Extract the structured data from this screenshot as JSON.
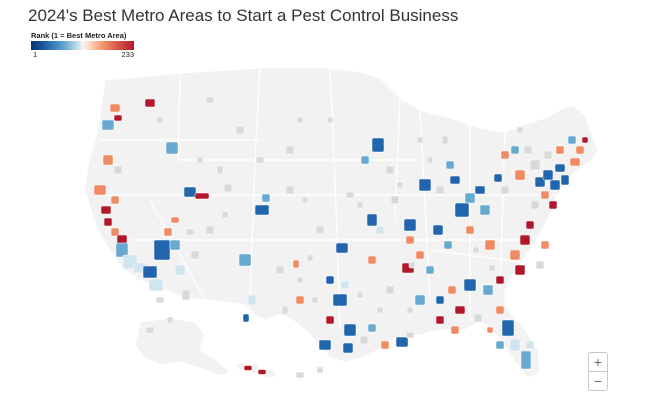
{
  "title": "2024's Best Metro Areas to Start a Pest Control Business",
  "legend": {
    "title": "Rank (1 = Best Metro Area)",
    "min_label": "1",
    "max_label": "233",
    "colors": [
      "#08306b",
      "#2166ac",
      "#67a9cf",
      "#d1e5f0",
      "#f7f7f7",
      "#fddbc7",
      "#ef8a62",
      "#b2182b"
    ]
  },
  "map": {
    "land_color": "#f2f2f2",
    "border_color": "#ffffff",
    "no_data_color": "#d9d9d9",
    "ocean_color": "#ffffff"
  },
  "zoom": {
    "in_label": "+",
    "out_label": "−"
  }
}
